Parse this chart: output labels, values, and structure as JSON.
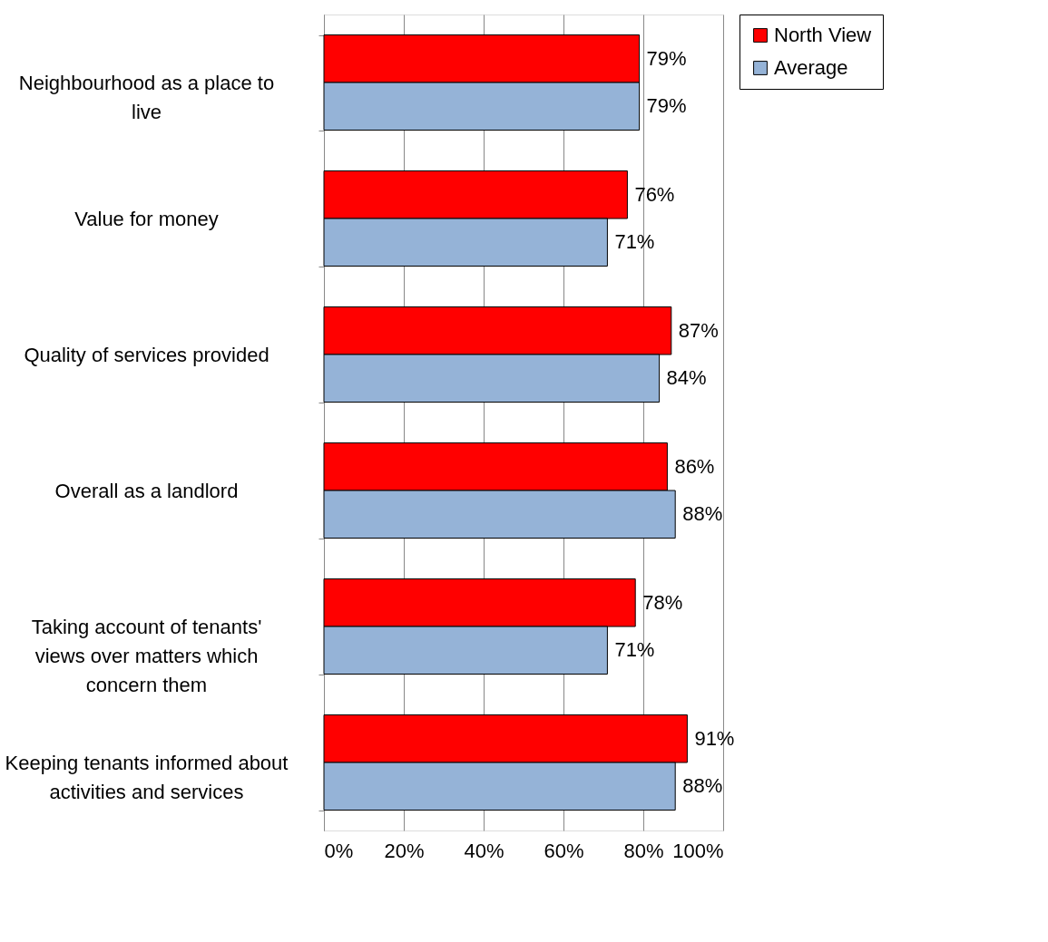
{
  "chart_data": {
    "type": "bar",
    "orientation": "horizontal",
    "categories": [
      "Neighbourhood as a place to live",
      "Value for money",
      "Quality of services provided",
      "Overall as a landlord",
      "Taking account of tenants' views over matters which concern them",
      "Keeping tenants informed about activities and services"
    ],
    "series": [
      {
        "name": "North View",
        "color": "#ff0000",
        "values": [
          79,
          76,
          87,
          86,
          78,
          91
        ],
        "value_labels": [
          "79%",
          "76%",
          "87%",
          "86%",
          "78%",
          "91%"
        ]
      },
      {
        "name": "Average",
        "color": "#95b3d7",
        "values": [
          79,
          71,
          84,
          88,
          71,
          88
        ],
        "value_labels": [
          "79%",
          "71%",
          "84%",
          "88%",
          "71%",
          "88%"
        ]
      }
    ],
    "xlim": [
      0,
      100
    ],
    "xticks": [
      {
        "value": 0,
        "label": "0%"
      },
      {
        "value": 20,
        "label": "20%"
      },
      {
        "value": 40,
        "label": "40%"
      },
      {
        "value": 60,
        "label": "60%"
      },
      {
        "value": 80,
        "label": "80%"
      },
      {
        "value": 100,
        "label": "100%"
      }
    ],
    "grid": "x",
    "legend": "right"
  }
}
